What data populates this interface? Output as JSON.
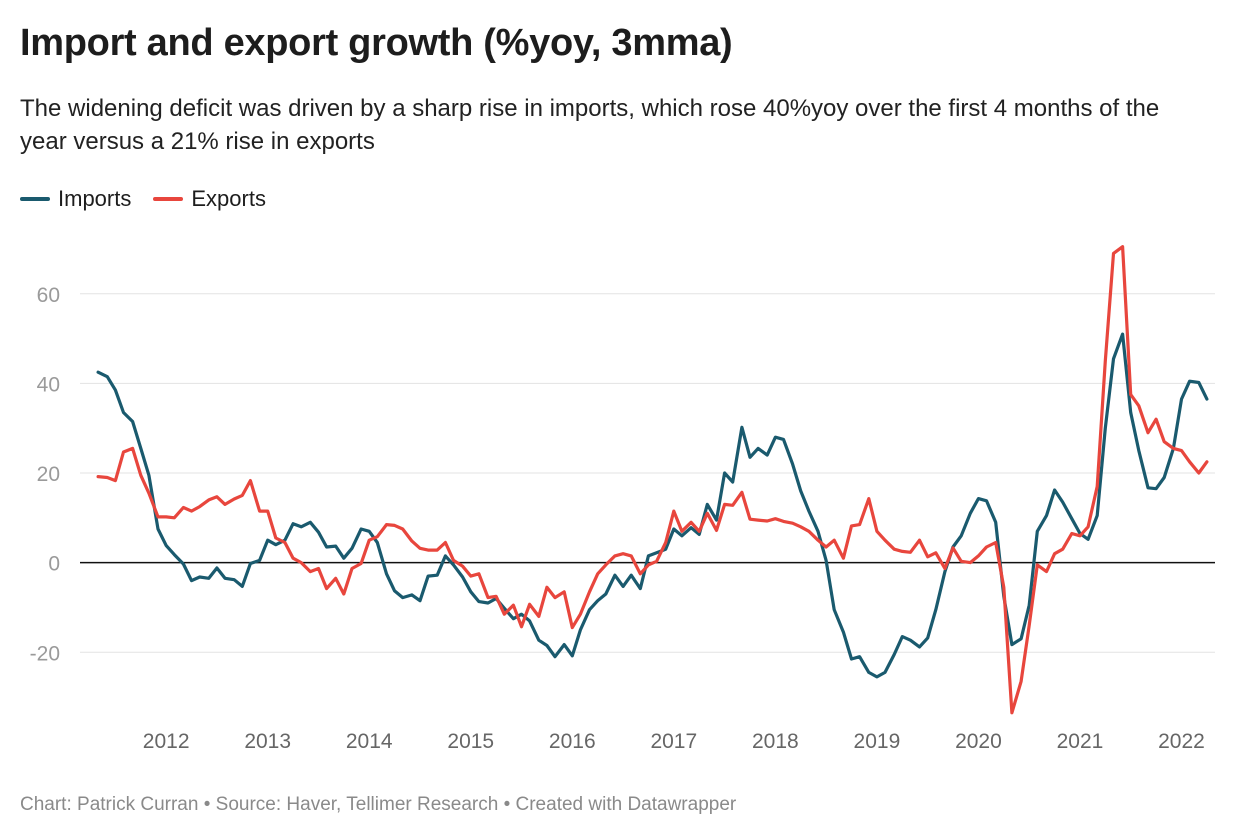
{
  "title": "Import and export growth (%yoy, 3mma)",
  "subtitle": "The widening deficit was driven by a sharp rise in imports, which rose 40%yoy over the first 4 months of the year versus a 21% rise in exports",
  "footer": "Chart: Patrick Curran • Source: Haver, Tellimer Research • Created with Datawrapper",
  "colors": {
    "imports": "#1a5a6e",
    "exports": "#e8463d",
    "grid": "#e3e3e3",
    "zero": "#111111",
    "tick": "#9a9a9a"
  },
  "chart_data": {
    "type": "line",
    "title": "Import and export growth (%yoy, 3mma)",
    "xlabel": "",
    "ylabel": "",
    "xlim": [
      2011.25,
      2022.33
    ],
    "ylim": [
      -34,
      72
    ],
    "yticks": [
      60,
      40,
      20,
      0,
      -20
    ],
    "xticks": [
      2012,
      2013,
      2014,
      2015,
      2016,
      2017,
      2018,
      2019,
      2020,
      2021,
      2022
    ],
    "grid": true,
    "legend_position": "top-left",
    "series": [
      {
        "name": "Imports",
        "color": "#1a5a6e",
        "points": [
          [
            2011.33,
            42.5
          ],
          [
            2011.42,
            41.5
          ],
          [
            2011.5,
            38.5
          ],
          [
            2011.58,
            33.5
          ],
          [
            2011.67,
            31.5
          ],
          [
            2011.75,
            25.5
          ],
          [
            2011.83,
            19.5
          ],
          [
            2011.92,
            7.5
          ],
          [
            2012.0,
            3.8
          ],
          [
            2012.08,
            1.8
          ],
          [
            2012.17,
            -0.3
          ],
          [
            2012.25,
            -4.0
          ],
          [
            2012.33,
            -3.2
          ],
          [
            2012.42,
            -3.5
          ],
          [
            2012.5,
            -1.2
          ],
          [
            2012.58,
            -3.5
          ],
          [
            2012.67,
            -3.8
          ],
          [
            2012.75,
            -5.3
          ],
          [
            2012.83,
            -0.2
          ],
          [
            2012.92,
            0.5
          ],
          [
            2013.0,
            5.0
          ],
          [
            2013.08,
            4.0
          ],
          [
            2013.17,
            5.0
          ],
          [
            2013.25,
            8.7
          ],
          [
            2013.33,
            8.0
          ],
          [
            2013.42,
            9.0
          ],
          [
            2013.5,
            6.8
          ],
          [
            2013.58,
            3.5
          ],
          [
            2013.67,
            3.7
          ],
          [
            2013.75,
            1.0
          ],
          [
            2013.83,
            3.2
          ],
          [
            2013.92,
            7.5
          ],
          [
            2014.0,
            7.0
          ],
          [
            2014.08,
            4.5
          ],
          [
            2014.17,
            -2.5
          ],
          [
            2014.25,
            -6.3
          ],
          [
            2014.33,
            -7.8
          ],
          [
            2014.42,
            -7.2
          ],
          [
            2014.5,
            -8.5
          ],
          [
            2014.58,
            -3.0
          ],
          [
            2014.67,
            -2.8
          ],
          [
            2014.75,
            1.5
          ],
          [
            2014.83,
            -0.5
          ],
          [
            2014.92,
            -3.2
          ],
          [
            2015.0,
            -6.5
          ],
          [
            2015.08,
            -8.7
          ],
          [
            2015.17,
            -9.0
          ],
          [
            2015.25,
            -8.0
          ],
          [
            2015.33,
            -10.2
          ],
          [
            2015.42,
            -12.5
          ],
          [
            2015.5,
            -11.5
          ],
          [
            2015.58,
            -13.0
          ],
          [
            2015.67,
            -17.3
          ],
          [
            2015.75,
            -18.5
          ],
          [
            2015.83,
            -21.0
          ],
          [
            2015.92,
            -18.3
          ],
          [
            2016.0,
            -20.8
          ],
          [
            2016.08,
            -15.0
          ],
          [
            2016.17,
            -10.5
          ],
          [
            2016.25,
            -8.5
          ],
          [
            2016.33,
            -7.0
          ],
          [
            2016.42,
            -2.8
          ],
          [
            2016.5,
            -5.3
          ],
          [
            2016.58,
            -2.8
          ],
          [
            2016.67,
            -5.8
          ],
          [
            2016.75,
            1.5
          ],
          [
            2016.83,
            2.2
          ],
          [
            2016.92,
            3.0
          ],
          [
            2017.0,
            7.5
          ],
          [
            2017.08,
            6.0
          ],
          [
            2017.17,
            7.8
          ],
          [
            2017.25,
            6.3
          ],
          [
            2017.33,
            13.0
          ],
          [
            2017.42,
            9.5
          ],
          [
            2017.5,
            20.0
          ],
          [
            2017.58,
            18.0
          ],
          [
            2017.67,
            30.2
          ],
          [
            2017.75,
            23.5
          ],
          [
            2017.83,
            25.5
          ],
          [
            2017.92,
            24.0
          ],
          [
            2018.0,
            28.0
          ],
          [
            2018.08,
            27.5
          ],
          [
            2018.17,
            22.0
          ],
          [
            2018.25,
            16.0
          ],
          [
            2018.33,
            11.5
          ],
          [
            2018.42,
            7.0
          ],
          [
            2018.5,
            0.5
          ],
          [
            2018.58,
            -10.5
          ],
          [
            2018.67,
            -15.5
          ],
          [
            2018.75,
            -21.5
          ],
          [
            2018.83,
            -21.0
          ],
          [
            2018.92,
            -24.5
          ],
          [
            2019.0,
            -25.5
          ],
          [
            2019.08,
            -24.5
          ],
          [
            2019.17,
            -20.5
          ],
          [
            2019.25,
            -16.5
          ],
          [
            2019.33,
            -17.3
          ],
          [
            2019.42,
            -18.8
          ],
          [
            2019.5,
            -16.8
          ],
          [
            2019.58,
            -10.5
          ],
          [
            2019.67,
            -2.0
          ],
          [
            2019.75,
            3.5
          ],
          [
            2019.83,
            6.0
          ],
          [
            2019.92,
            11.0
          ],
          [
            2020.0,
            14.3
          ],
          [
            2020.08,
            13.8
          ],
          [
            2020.17,
            9.0
          ],
          [
            2020.25,
            -7.5
          ],
          [
            2020.33,
            -18.3
          ],
          [
            2020.42,
            -17.0
          ],
          [
            2020.5,
            -9.5
          ],
          [
            2020.58,
            7.0
          ],
          [
            2020.67,
            10.5
          ],
          [
            2020.75,
            16.2
          ],
          [
            2020.83,
            13.5
          ],
          [
            2020.92,
            9.8
          ],
          [
            2021.0,
            6.5
          ],
          [
            2021.08,
            5.2
          ],
          [
            2021.17,
            10.5
          ],
          [
            2021.25,
            30.0
          ],
          [
            2021.33,
            45.5
          ],
          [
            2021.42,
            51.0
          ],
          [
            2021.5,
            33.5
          ],
          [
            2021.58,
            25.0
          ],
          [
            2021.67,
            16.7
          ],
          [
            2021.75,
            16.5
          ],
          [
            2021.83,
            19.0
          ],
          [
            2021.92,
            25.5
          ],
          [
            2022.0,
            36.5
          ],
          [
            2022.08,
            40.5
          ],
          [
            2022.17,
            40.2
          ],
          [
            2022.25,
            36.5
          ]
        ]
      },
      {
        "name": "Exports",
        "color": "#e8463d",
        "points": [
          [
            2011.33,
            19.2
          ],
          [
            2011.42,
            19.0
          ],
          [
            2011.5,
            18.3
          ],
          [
            2011.58,
            24.7
          ],
          [
            2011.67,
            25.5
          ],
          [
            2011.75,
            19.5
          ],
          [
            2011.83,
            15.5
          ],
          [
            2011.92,
            10.2
          ],
          [
            2012.0,
            10.2
          ],
          [
            2012.08,
            10.0
          ],
          [
            2012.17,
            12.3
          ],
          [
            2012.25,
            11.5
          ],
          [
            2012.33,
            12.5
          ],
          [
            2012.42,
            14.0
          ],
          [
            2012.5,
            14.7
          ],
          [
            2012.58,
            13.0
          ],
          [
            2012.67,
            14.2
          ],
          [
            2012.75,
            15.0
          ],
          [
            2012.83,
            18.3
          ],
          [
            2012.92,
            11.5
          ],
          [
            2013.0,
            11.5
          ],
          [
            2013.08,
            5.5
          ],
          [
            2013.17,
            4.5
          ],
          [
            2013.25,
            1.0
          ],
          [
            2013.33,
            0.0
          ],
          [
            2013.42,
            -2.0
          ],
          [
            2013.5,
            -1.3
          ],
          [
            2013.58,
            -5.8
          ],
          [
            2013.67,
            -3.5
          ],
          [
            2013.75,
            -7.0
          ],
          [
            2013.83,
            -1.3
          ],
          [
            2013.92,
            -0.2
          ],
          [
            2014.0,
            5.0
          ],
          [
            2014.08,
            5.8
          ],
          [
            2014.17,
            8.5
          ],
          [
            2014.25,
            8.3
          ],
          [
            2014.33,
            7.5
          ],
          [
            2014.42,
            4.8
          ],
          [
            2014.5,
            3.2
          ],
          [
            2014.58,
            2.8
          ],
          [
            2014.67,
            2.8
          ],
          [
            2014.75,
            4.5
          ],
          [
            2014.83,
            0.5
          ],
          [
            2014.92,
            -0.8
          ],
          [
            2015.0,
            -3.0
          ],
          [
            2015.08,
            -2.5
          ],
          [
            2015.17,
            -7.8
          ],
          [
            2015.25,
            -7.5
          ],
          [
            2015.33,
            -11.5
          ],
          [
            2015.42,
            -9.5
          ],
          [
            2015.5,
            -14.3
          ],
          [
            2015.58,
            -9.3
          ],
          [
            2015.67,
            -12.0
          ],
          [
            2015.75,
            -5.5
          ],
          [
            2015.83,
            -7.8
          ],
          [
            2015.92,
            -6.5
          ],
          [
            2016.0,
            -14.5
          ],
          [
            2016.08,
            -11.5
          ],
          [
            2016.17,
            -6.5
          ],
          [
            2016.25,
            -2.5
          ],
          [
            2016.33,
            -0.5
          ],
          [
            2016.42,
            1.5
          ],
          [
            2016.5,
            2.0
          ],
          [
            2016.58,
            1.5
          ],
          [
            2016.67,
            -2.5
          ],
          [
            2016.75,
            -0.5
          ],
          [
            2016.83,
            0.3
          ],
          [
            2016.92,
            4.5
          ],
          [
            2017.0,
            11.5
          ],
          [
            2017.08,
            7.0
          ],
          [
            2017.17,
            9.0
          ],
          [
            2017.25,
            7.0
          ],
          [
            2017.33,
            11.0
          ],
          [
            2017.42,
            7.2
          ],
          [
            2017.5,
            13.0
          ],
          [
            2017.58,
            12.8
          ],
          [
            2017.67,
            15.7
          ],
          [
            2017.75,
            9.7
          ],
          [
            2017.83,
            9.5
          ],
          [
            2017.92,
            9.3
          ],
          [
            2018.0,
            9.8
          ],
          [
            2018.08,
            9.2
          ],
          [
            2018.17,
            8.8
          ],
          [
            2018.25,
            8.0
          ],
          [
            2018.33,
            7.0
          ],
          [
            2018.42,
            5.0
          ],
          [
            2018.5,
            3.5
          ],
          [
            2018.58,
            5.0
          ],
          [
            2018.67,
            1.0
          ],
          [
            2018.75,
            8.2
          ],
          [
            2018.83,
            8.5
          ],
          [
            2018.92,
            14.3
          ],
          [
            2019.0,
            7.0
          ],
          [
            2019.08,
            5.0
          ],
          [
            2019.17,
            3.0
          ],
          [
            2019.25,
            2.5
          ],
          [
            2019.33,
            2.3
          ],
          [
            2019.42,
            5.0
          ],
          [
            2019.5,
            1.3
          ],
          [
            2019.58,
            2.2
          ],
          [
            2019.67,
            -1.3
          ],
          [
            2019.75,
            3.3
          ],
          [
            2019.83,
            0.3
          ],
          [
            2019.92,
            0.0
          ],
          [
            2020.0,
            1.5
          ],
          [
            2020.08,
            3.5
          ],
          [
            2020.17,
            4.5
          ],
          [
            2020.25,
            -5.5
          ],
          [
            2020.33,
            -33.5
          ],
          [
            2020.42,
            -26.5
          ],
          [
            2020.5,
            -14.0
          ],
          [
            2020.58,
            -0.5
          ],
          [
            2020.67,
            -2.0
          ],
          [
            2020.75,
            2.0
          ],
          [
            2020.83,
            3.0
          ],
          [
            2020.92,
            6.5
          ],
          [
            2021.0,
            6.0
          ],
          [
            2021.08,
            8.0
          ],
          [
            2021.17,
            17.0
          ],
          [
            2021.25,
            45.0
          ],
          [
            2021.33,
            69.0
          ],
          [
            2021.42,
            70.5
          ],
          [
            2021.5,
            37.5
          ],
          [
            2021.58,
            35.0
          ],
          [
            2021.67,
            29.0
          ],
          [
            2021.75,
            32.0
          ],
          [
            2021.83,
            27.0
          ],
          [
            2021.92,
            25.5
          ],
          [
            2022.0,
            25.0
          ],
          [
            2022.08,
            22.5
          ],
          [
            2022.17,
            20.0
          ],
          [
            2022.25,
            22.5
          ]
        ]
      }
    ]
  }
}
